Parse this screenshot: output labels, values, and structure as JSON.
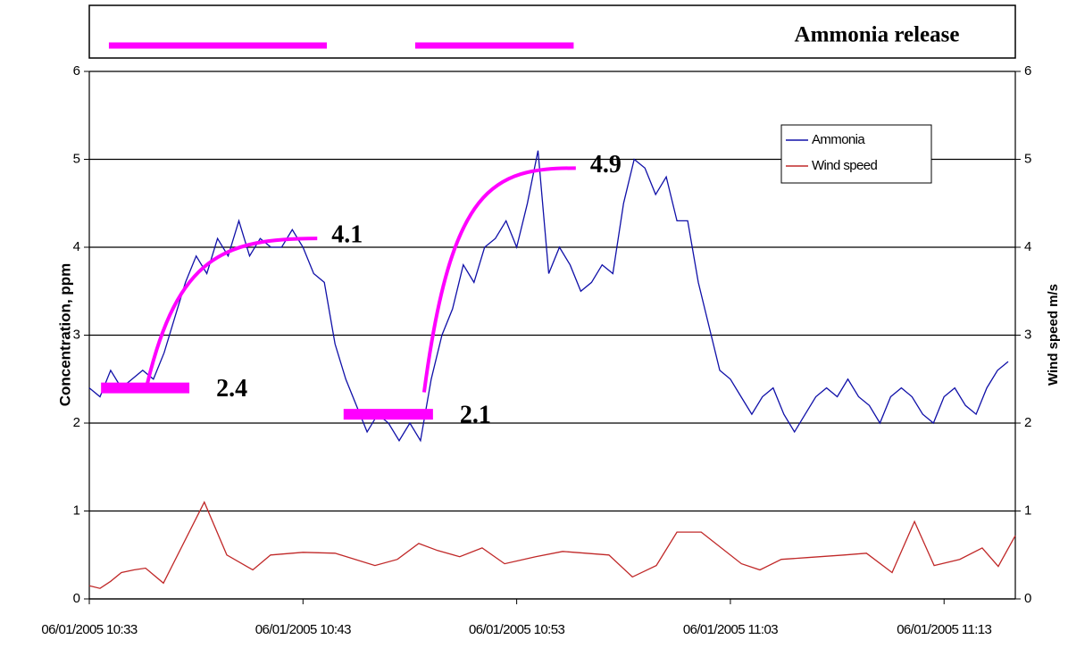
{
  "chart_data": {
    "type": "line",
    "release": {
      "label": "Ammonia release",
      "color": "#ff00ff",
      "periods": [
        [
          "2005-06-01T10:33:55",
          "2005-06-01T10:44:07"
        ],
        [
          "2005-06-01T10:48:15",
          "2005-06-01T10:55:40"
        ]
      ]
    },
    "ylabel": "Concentration, ppm",
    "y2label": "Wind speed m/s",
    "xlim": [
      "2005-06-01T10:33:00",
      "2005-06-01T11:16:20"
    ],
    "xticks": [
      {
        "value": "2005-06-01T10:33:00",
        "label": "06/01/2005 10:33"
      },
      {
        "value": "2005-06-01T10:43:00",
        "label": "06/01/2005 10:43"
      },
      {
        "value": "2005-06-01T10:53:00",
        "label": "06/01/2005 10:53"
      },
      {
        "value": "2005-06-01T11:03:00",
        "label": "06/01/2005 11:03"
      },
      {
        "value": "2005-06-01T11:13:00",
        "label": "06/01/2005 11:13"
      }
    ],
    "ylim": [
      0,
      6
    ],
    "yticks": [
      0,
      1,
      2,
      3,
      4,
      5,
      6
    ],
    "y2lim": [
      0,
      6
    ],
    "y2ticks": [
      0,
      1,
      2,
      3,
      4,
      5,
      6
    ],
    "grid": true,
    "legend": "upper right",
    "series": [
      {
        "name": "Ammonia",
        "color": "#1010a8",
        "x": [
          "2005-06-01T10:33:00",
          "2005-06-01T10:33:30",
          "2005-06-01T10:34:00",
          "2005-06-01T10:34:30",
          "2005-06-01T10:35:00",
          "2005-06-01T10:35:30",
          "2005-06-01T10:36:00",
          "2005-06-01T10:36:30",
          "2005-06-01T10:37:00",
          "2005-06-01T10:37:30",
          "2005-06-01T10:38:00",
          "2005-06-01T10:38:30",
          "2005-06-01T10:39:00",
          "2005-06-01T10:39:30",
          "2005-06-01T10:40:00",
          "2005-06-01T10:40:30",
          "2005-06-01T10:41:00",
          "2005-06-01T10:41:30",
          "2005-06-01T10:42:00",
          "2005-06-01T10:42:30",
          "2005-06-01T10:43:00",
          "2005-06-01T10:43:30",
          "2005-06-01T10:44:00",
          "2005-06-01T10:44:30",
          "2005-06-01T10:45:00",
          "2005-06-01T10:45:30",
          "2005-06-01T10:46:00",
          "2005-06-01T10:46:30",
          "2005-06-01T10:47:00",
          "2005-06-01T10:47:30",
          "2005-06-01T10:48:00",
          "2005-06-01T10:48:30",
          "2005-06-01T10:49:00",
          "2005-06-01T10:49:30",
          "2005-06-01T10:50:00",
          "2005-06-01T10:50:30",
          "2005-06-01T10:51:00",
          "2005-06-01T10:51:30",
          "2005-06-01T10:52:00",
          "2005-06-01T10:52:30",
          "2005-06-01T10:53:00",
          "2005-06-01T10:53:30",
          "2005-06-01T10:54:00",
          "2005-06-01T10:54:30",
          "2005-06-01T10:55:00",
          "2005-06-01T10:55:30",
          "2005-06-01T10:56:00",
          "2005-06-01T10:56:30",
          "2005-06-01T10:57:00",
          "2005-06-01T10:57:30",
          "2005-06-01T10:58:00",
          "2005-06-01T10:58:30",
          "2005-06-01T10:59:00",
          "2005-06-01T10:59:30",
          "2005-06-01T11:00:00",
          "2005-06-01T11:00:30",
          "2005-06-01T11:01:00",
          "2005-06-01T11:01:30",
          "2005-06-01T11:02:00",
          "2005-06-01T11:02:30",
          "2005-06-01T11:03:00",
          "2005-06-01T11:03:30",
          "2005-06-01T11:04:00",
          "2005-06-01T11:04:30",
          "2005-06-01T11:05:00",
          "2005-06-01T11:05:30",
          "2005-06-01T11:06:00",
          "2005-06-01T11:06:30",
          "2005-06-01T11:07:00",
          "2005-06-01T11:07:30",
          "2005-06-01T11:08:00",
          "2005-06-01T11:08:30",
          "2005-06-01T11:09:00",
          "2005-06-01T11:09:30",
          "2005-06-01T11:10:00",
          "2005-06-01T11:10:30",
          "2005-06-01T11:11:00",
          "2005-06-01T11:11:30",
          "2005-06-01T11:12:00",
          "2005-06-01T11:12:30",
          "2005-06-01T11:13:00",
          "2005-06-01T11:13:30",
          "2005-06-01T11:14:00",
          "2005-06-01T11:14:30",
          "2005-06-01T11:15:00",
          "2005-06-01T11:15:30",
          "2005-06-01T11:16:00"
        ],
        "values": [
          2.4,
          2.3,
          2.6,
          2.4,
          2.5,
          2.6,
          2.5,
          2.8,
          3.2,
          3.6,
          3.9,
          3.7,
          4.1,
          3.9,
          4.3,
          3.9,
          4.1,
          4.0,
          4.0,
          4.2,
          4.0,
          3.7,
          3.6,
          2.9,
          2.5,
          2.2,
          1.9,
          2.1,
          2.0,
          1.8,
          2.0,
          1.8,
          2.5,
          3.0,
          3.3,
          3.8,
          3.6,
          4.0,
          4.1,
          4.3,
          4.0,
          4.5,
          5.1,
          3.7,
          4.0,
          3.8,
          3.5,
          3.6,
          3.8,
          3.7,
          4.5,
          5.0,
          4.9,
          4.6,
          4.8,
          4.3,
          4.3,
          3.6,
          3.1,
          2.6,
          2.5,
          2.3,
          2.1,
          2.3,
          2.4,
          2.1,
          1.9,
          2.1,
          2.3,
          2.4,
          2.3,
          2.5,
          2.3,
          2.2,
          2.0,
          2.3,
          2.4,
          2.3,
          2.1,
          2.0,
          2.3,
          2.4,
          2.2,
          2.1,
          2.4,
          2.6,
          2.7
        ]
      },
      {
        "name": "Wind speed",
        "color": "#c02828",
        "axis": "y2",
        "x": [
          "2005-06-01T10:33:00",
          "2005-06-01T10:33:30",
          "2005-06-01T10:34:00",
          "2005-06-01T10:34:30",
          "2005-06-01T10:35:05",
          "2005-06-01T10:35:38",
          "2005-06-01T10:36:28",
          "2005-06-01T10:38:23",
          "2005-06-01T10:39:26",
          "2005-06-01T10:40:39",
          "2005-06-01T10:41:29",
          "2005-06-01T10:43:00",
          "2005-06-01T10:44:30",
          "2005-06-01T10:46:22",
          "2005-06-01T10:47:25",
          "2005-06-01T10:48:25",
          "2005-06-01T10:49:18",
          "2005-06-01T10:50:20",
          "2005-06-01T10:51:23",
          "2005-06-01T10:52:26",
          "2005-06-01T10:53:53",
          "2005-06-01T10:55:09",
          "2005-06-01T10:57:19",
          "2005-06-01T10:58:25",
          "2005-06-01T10:59:32",
          "2005-06-01T11:00:30",
          "2005-06-01T11:01:38",
          "2005-06-01T11:03:31",
          "2005-06-01T11:04:23",
          "2005-06-01T11:05:23",
          "2005-06-01T11:06:36",
          "2005-06-01T11:08:19",
          "2005-06-01T11:09:22",
          "2005-06-01T11:10:34",
          "2005-06-01T11:11:37",
          "2005-06-01T11:12:32",
          "2005-06-01T11:13:44",
          "2005-06-01T11:14:47",
          "2005-06-01T11:15:32",
          "2005-06-01T11:16:20"
        ],
        "values": [
          0.15,
          0.12,
          0.2,
          0.3,
          0.33,
          0.35,
          0.18,
          1.1,
          0.5,
          0.33,
          0.5,
          0.53,
          0.52,
          0.38,
          0.45,
          0.63,
          0.55,
          0.48,
          0.58,
          0.4,
          0.48,
          0.54,
          0.5,
          0.25,
          0.38,
          0.76,
          0.76,
          0.4,
          0.33,
          0.45,
          0.47,
          0.5,
          0.52,
          0.3,
          0.88,
          0.38,
          0.45,
          0.58,
          0.37,
          0.72
        ]
      }
    ],
    "annotations": [
      {
        "text": "2.4",
        "value": 2.4,
        "style": "bar",
        "x": [
          "2005-06-01T10:33:33",
          "2005-06-01T10:37:41"
        ]
      },
      {
        "text": "4.1",
        "value": 4.1,
        "style": "curve",
        "start": 2.45,
        "x": [
          "2005-06-01T10:35:43",
          "2005-06-01T10:43:40"
        ]
      },
      {
        "text": "2.1",
        "value": 2.1,
        "style": "bar",
        "x": [
          "2005-06-01T10:44:54",
          "2005-06-01T10:49:05"
        ]
      },
      {
        "text": "4.9",
        "value": 4.9,
        "style": "curve",
        "start": 2.35,
        "x": [
          "2005-06-01T10:48:40",
          "2005-06-01T10:55:46"
        ]
      }
    ],
    "annotation_color": "#ff00ff"
  }
}
